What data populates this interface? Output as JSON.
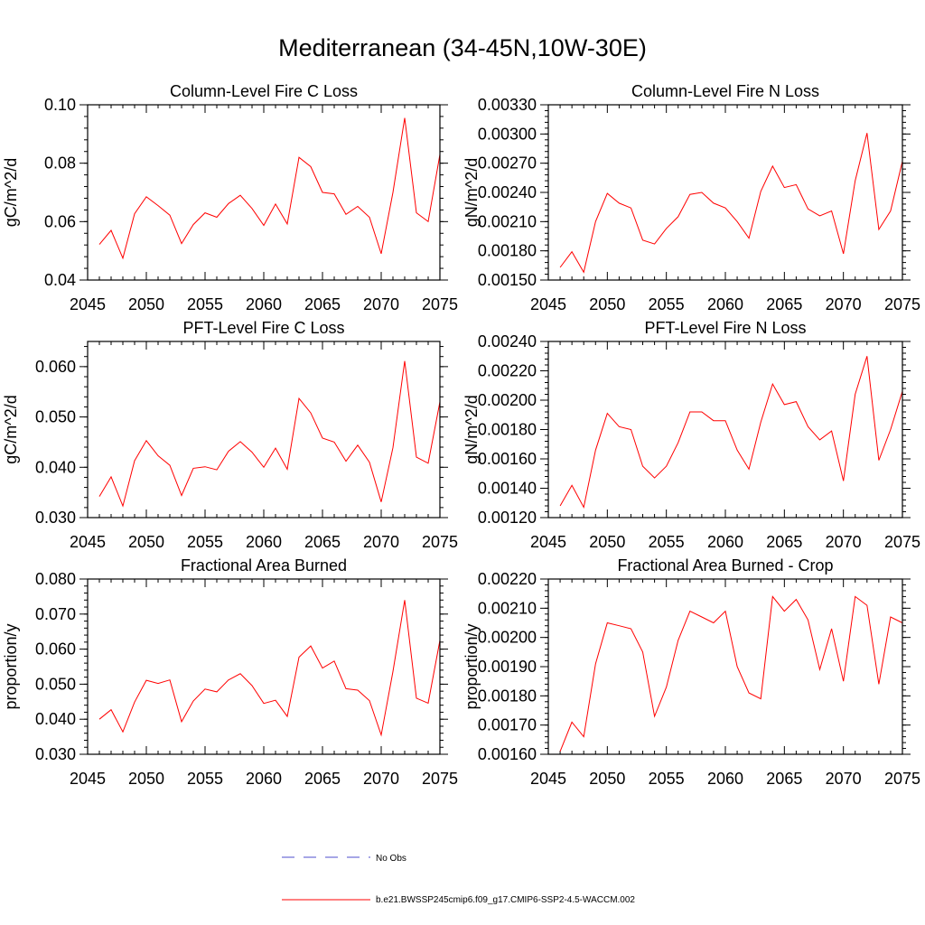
{
  "title": "Mediterranean (34-45N,10W-30E)",
  "colors": {
    "series": "#ff0000",
    "obs": "#4d4dcc",
    "axis": "#000000"
  },
  "legend": {
    "obs_label": "No Obs",
    "model_label": "b.e21.BWSSP245cmip6.f09_g17.CMIP6-SSP2-4.5-WACCM.002"
  },
  "chart_data": [
    {
      "type": "line",
      "title": "Column-Level Fire C Loss",
      "ylabel": "gC/m^2/d",
      "xlim": [
        2045,
        2075
      ],
      "ylim": [
        0.04,
        0.1
      ],
      "xticks": [
        2045,
        2050,
        2055,
        2060,
        2065,
        2070,
        2075
      ],
      "yticks": [
        0.04,
        0.06,
        0.08,
        0.1
      ],
      "ytick_labels": [
        "0.04",
        "0.06",
        "0.08",
        "0.10"
      ],
      "x": [
        2046,
        2047,
        2048,
        2049,
        2050,
        2051,
        2052,
        2053,
        2054,
        2055,
        2056,
        2057,
        2058,
        2059,
        2060,
        2061,
        2062,
        2063,
        2064,
        2065,
        2066,
        2067,
        2068,
        2069,
        2070,
        2071,
        2072,
        2073,
        2074,
        2075
      ],
      "series": [
        {
          "values": [
            0.0522,
            0.057,
            0.0475,
            0.0627,
            0.0685,
            0.0655,
            0.0622,
            0.0525,
            0.059,
            0.063,
            0.0615,
            0.0662,
            0.069,
            0.0645,
            0.0587,
            0.066,
            0.0592,
            0.082,
            0.0788,
            0.07,
            0.0695,
            0.0625,
            0.0652,
            0.0615,
            0.049,
            0.07,
            0.0955,
            0.063,
            0.06,
            0.083
          ]
        }
      ]
    },
    {
      "type": "line",
      "title": "Column-Level Fire N Loss",
      "ylabel": "gN/m^2/d",
      "xlim": [
        2045,
        2075
      ],
      "ylim": [
        0.0015,
        0.0033
      ],
      "xticks": [
        2045,
        2050,
        2055,
        2060,
        2065,
        2070,
        2075
      ],
      "yticks": [
        0.0015,
        0.0018,
        0.0021,
        0.0024,
        0.0027,
        0.003,
        0.0033
      ],
      "ytick_labels": [
        "0.00150",
        "0.00180",
        "0.00210",
        "0.00240",
        "0.00270",
        "0.00300",
        "0.00330"
      ],
      "x": [
        2046,
        2047,
        2048,
        2049,
        2050,
        2051,
        2052,
        2053,
        2054,
        2055,
        2056,
        2057,
        2058,
        2059,
        2060,
        2061,
        2062,
        2063,
        2064,
        2065,
        2066,
        2067,
        2068,
        2069,
        2070,
        2071,
        2072,
        2073,
        2074,
        2075
      ],
      "series": [
        {
          "values": [
            0.00163,
            0.00179,
            0.00158,
            0.0021,
            0.00239,
            0.00229,
            0.00224,
            0.00191,
            0.00187,
            0.00203,
            0.00215,
            0.00238,
            0.0024,
            0.00229,
            0.00224,
            0.0021,
            0.00193,
            0.00241,
            0.00267,
            0.00245,
            0.00248,
            0.00223,
            0.00216,
            0.00221,
            0.00177,
            0.00252,
            0.00301,
            0.00202,
            0.00221,
            0.00272
          ]
        }
      ]
    },
    {
      "type": "line",
      "title": "PFT-Level Fire C Loss",
      "ylabel": "gC/m^2/d",
      "xlim": [
        2045,
        2075
      ],
      "ylim": [
        0.03,
        0.065
      ],
      "xticks": [
        2045,
        2050,
        2055,
        2060,
        2065,
        2070,
        2075
      ],
      "yticks": [
        0.03,
        0.04,
        0.05,
        0.06
      ],
      "ytick_labels": [
        "0.030",
        "0.040",
        "0.050",
        "0.060"
      ],
      "x": [
        2046,
        2047,
        2048,
        2049,
        2050,
        2051,
        2052,
        2053,
        2054,
        2055,
        2056,
        2057,
        2058,
        2059,
        2060,
        2061,
        2062,
        2063,
        2064,
        2065,
        2066,
        2067,
        2068,
        2069,
        2070,
        2071,
        2072,
        2073,
        2074,
        2075
      ],
      "series": [
        {
          "values": [
            0.0342,
            0.0381,
            0.0323,
            0.0413,
            0.0453,
            0.0423,
            0.0404,
            0.0344,
            0.0398,
            0.0401,
            0.0395,
            0.0432,
            0.0451,
            0.043,
            0.04,
            0.0438,
            0.0396,
            0.0537,
            0.0508,
            0.0458,
            0.045,
            0.0412,
            0.0444,
            0.041,
            0.0331,
            0.0439,
            0.0611,
            0.042,
            0.0408,
            0.053
          ]
        }
      ]
    },
    {
      "type": "line",
      "title": "PFT-Level Fire N Loss",
      "ylabel": "gN/m^2/d",
      "xlim": [
        2045,
        2075
      ],
      "ylim": [
        0.0012,
        0.0024
      ],
      "xticks": [
        2045,
        2050,
        2055,
        2060,
        2065,
        2070,
        2075
      ],
      "yticks": [
        0.0012,
        0.0014,
        0.0016,
        0.0018,
        0.002,
        0.0022,
        0.0024
      ],
      "ytick_labels": [
        "0.00120",
        "0.00140",
        "0.00160",
        "0.00180",
        "0.00200",
        "0.00220",
        "0.00240"
      ],
      "x": [
        2046,
        2047,
        2048,
        2049,
        2050,
        2051,
        2052,
        2053,
        2054,
        2055,
        2056,
        2057,
        2058,
        2059,
        2060,
        2061,
        2062,
        2063,
        2064,
        2065,
        2066,
        2067,
        2068,
        2069,
        2070,
        2071,
        2072,
        2073,
        2074,
        2075
      ],
      "series": [
        {
          "values": [
            0.00128,
            0.00142,
            0.00127,
            0.00166,
            0.00191,
            0.00182,
            0.0018,
            0.00155,
            0.00147,
            0.00155,
            0.00171,
            0.00192,
            0.00192,
            0.00186,
            0.00186,
            0.00166,
            0.00153,
            0.00185,
            0.00211,
            0.00197,
            0.00199,
            0.00182,
            0.00173,
            0.00179,
            0.00145,
            0.00204,
            0.0023,
            0.00159,
            0.0018,
            0.00206
          ]
        }
      ]
    },
    {
      "type": "line",
      "title": "Fractional Area Burned",
      "ylabel": "proportion/y",
      "xlim": [
        2045,
        2075
      ],
      "ylim": [
        0.03,
        0.08
      ],
      "xticks": [
        2045,
        2050,
        2055,
        2060,
        2065,
        2070,
        2075
      ],
      "yticks": [
        0.03,
        0.04,
        0.05,
        0.06,
        0.07,
        0.08
      ],
      "ytick_labels": [
        "0.030",
        "0.040",
        "0.050",
        "0.060",
        "0.070",
        "0.080"
      ],
      "x": [
        2046,
        2047,
        2048,
        2049,
        2050,
        2051,
        2052,
        2053,
        2054,
        2055,
        2056,
        2057,
        2058,
        2059,
        2060,
        2061,
        2062,
        2063,
        2064,
        2065,
        2066,
        2067,
        2068,
        2069,
        2070,
        2071,
        2072,
        2073,
        2074,
        2075
      ],
      "series": [
        {
          "values": [
            0.04,
            0.0427,
            0.0364,
            0.0449,
            0.0511,
            0.0502,
            0.0512,
            0.0393,
            0.0452,
            0.0486,
            0.0478,
            0.0512,
            0.053,
            0.0496,
            0.0445,
            0.0454,
            0.0408,
            0.0577,
            0.0609,
            0.0546,
            0.0566,
            0.0487,
            0.0483,
            0.0453,
            0.0355,
            0.0536,
            0.074,
            0.046,
            0.0446,
            0.0625
          ]
        }
      ]
    },
    {
      "type": "line",
      "title": "Fractional Area Burned - Crop",
      "ylabel": "proportion/y",
      "xlim": [
        2045,
        2075
      ],
      "ylim": [
        0.0016,
        0.0022
      ],
      "xticks": [
        2045,
        2050,
        2055,
        2060,
        2065,
        2070,
        2075
      ],
      "yticks": [
        0.0016,
        0.0017,
        0.0018,
        0.0019,
        0.002,
        0.0021,
        0.0022
      ],
      "ytick_labels": [
        "0.00160",
        "0.00170",
        "0.00180",
        "0.00190",
        "0.00200",
        "0.00210",
        "0.00220"
      ],
      "x": [
        2046,
        2047,
        2048,
        2049,
        2050,
        2051,
        2052,
        2053,
        2054,
        2055,
        2056,
        2057,
        2058,
        2059,
        2060,
        2061,
        2062,
        2063,
        2064,
        2065,
        2066,
        2067,
        2068,
        2069,
        2070,
        2071,
        2072,
        2073,
        2074,
        2075
      ],
      "series": [
        {
          "values": [
            0.00161,
            0.00171,
            0.00166,
            0.00191,
            0.00205,
            0.00204,
            0.00203,
            0.00195,
            0.00173,
            0.00183,
            0.00199,
            0.00209,
            0.00207,
            0.00205,
            0.00209,
            0.0019,
            0.00181,
            0.00179,
            0.00214,
            0.00209,
            0.00213,
            0.00206,
            0.00189,
            0.00203,
            0.00185,
            0.00214,
            0.00211,
            0.00184,
            0.00207,
            0.00205
          ]
        }
      ]
    }
  ]
}
